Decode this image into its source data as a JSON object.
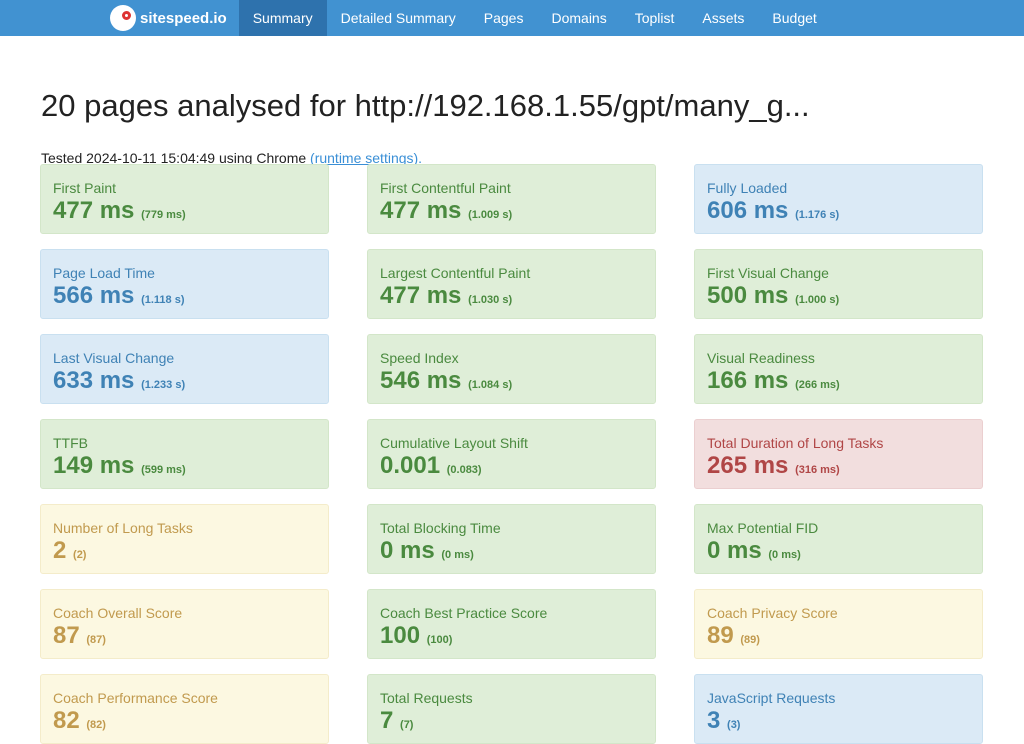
{
  "nav": {
    "brand": "sitespeed.io",
    "items": [
      "Summary",
      "Detailed Summary",
      "Pages",
      "Domains",
      "Toplist",
      "Assets",
      "Budget"
    ],
    "active": "Summary"
  },
  "title": "20 pages analysed for http://192.168.1.55/gpt/many_g...",
  "tested": {
    "prefix": "Tested 2024-10-11 15:04:49 using Chrome",
    "link": "(runtime settings)."
  },
  "colors": {
    "ok": "#dfeed8",
    "info": "#dbeaf6",
    "warning": "#fcf8e1",
    "error": "#f2dede"
  },
  "cards": [
    {
      "title": "First Paint",
      "value": "477 ms",
      "sub": "(779 ms)",
      "status": "ok"
    },
    {
      "title": "First Contentful Paint",
      "value": "477 ms",
      "sub": "(1.009 s)",
      "status": "ok"
    },
    {
      "title": "Fully Loaded",
      "value": "606 ms",
      "sub": "(1.176 s)",
      "status": "info"
    },
    {
      "title": "Page Load Time",
      "value": "566 ms",
      "sub": "(1.118 s)",
      "status": "info"
    },
    {
      "title": "Largest Contentful Paint",
      "value": "477 ms",
      "sub": "(1.030 s)",
      "status": "ok"
    },
    {
      "title": "First Visual Change",
      "value": "500 ms",
      "sub": "(1.000 s)",
      "status": "ok"
    },
    {
      "title": "Last Visual Change",
      "value": "633 ms",
      "sub": "(1.233 s)",
      "status": "info"
    },
    {
      "title": "Speed Index",
      "value": "546 ms",
      "sub": "(1.084 s)",
      "status": "ok"
    },
    {
      "title": "Visual Readiness",
      "value": "166 ms",
      "sub": "(266 ms)",
      "status": "ok"
    },
    {
      "title": "TTFB",
      "value": "149 ms",
      "sub": "(599 ms)",
      "status": "ok"
    },
    {
      "title": "Cumulative Layout Shift",
      "value": "0.001",
      "sub": "(0.083)",
      "status": "ok"
    },
    {
      "title": "Total Duration of Long Tasks",
      "value": "265 ms",
      "sub": "(316 ms)",
      "status": "error"
    },
    {
      "title": "Number of Long Tasks",
      "value": "2",
      "sub": "(2)",
      "status": "warning"
    },
    {
      "title": "Total Blocking Time",
      "value": "0 ms",
      "sub": "(0 ms)",
      "status": "ok"
    },
    {
      "title": "Max Potential FID",
      "value": "0 ms",
      "sub": "(0 ms)",
      "status": "ok"
    },
    {
      "title": "Coach Overall Score",
      "value": "87",
      "sub": "(87)",
      "status": "warning"
    },
    {
      "title": "Coach Best Practice Score",
      "value": "100",
      "sub": "(100)",
      "status": "ok"
    },
    {
      "title": "Coach Privacy Score",
      "value": "89",
      "sub": "(89)",
      "status": "warning"
    },
    {
      "title": "Coach Performance Score",
      "value": "82",
      "sub": "(82)",
      "status": "warning"
    },
    {
      "title": "Total Requests",
      "value": "7",
      "sub": "(7)",
      "status": "ok"
    },
    {
      "title": "JavaScript Requests",
      "value": "3",
      "sub": "(3)",
      "status": "info"
    }
  ]
}
